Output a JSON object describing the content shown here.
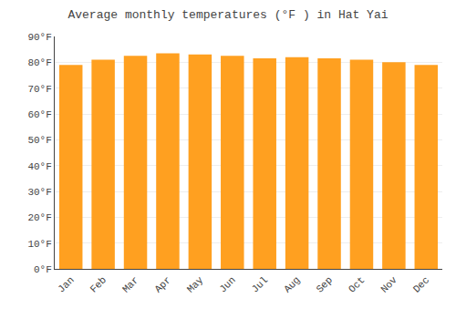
{
  "chart_data": {
    "type": "bar",
    "title": "Average monthly temperatures (°F ) in Hat Yai",
    "categories": [
      "Jan",
      "Feb",
      "Mar",
      "Apr",
      "May",
      "Jun",
      "Jul",
      "Aug",
      "Sep",
      "Oct",
      "Nov",
      "Dec"
    ],
    "values": [
      79,
      81,
      82.5,
      83.5,
      83,
      82.5,
      81.5,
      82,
      81.5,
      81,
      80,
      79
    ],
    "color": "#FFA020",
    "ylim": [
      0,
      90
    ],
    "yticks": [
      {
        "value": 0,
        "label": "0°F"
      },
      {
        "value": 10,
        "label": "10°F"
      },
      {
        "value": 20,
        "label": "20°F"
      },
      {
        "value": 30,
        "label": "30°F"
      },
      {
        "value": 40,
        "label": "40°F"
      },
      {
        "value": 50,
        "label": "50°F"
      },
      {
        "value": 60,
        "label": "60°F"
      },
      {
        "value": 70,
        "label": "70°F"
      },
      {
        "value": 80,
        "label": "80°F"
      },
      {
        "value": 90,
        "label": "90°F"
      }
    ],
    "grid": true
  }
}
